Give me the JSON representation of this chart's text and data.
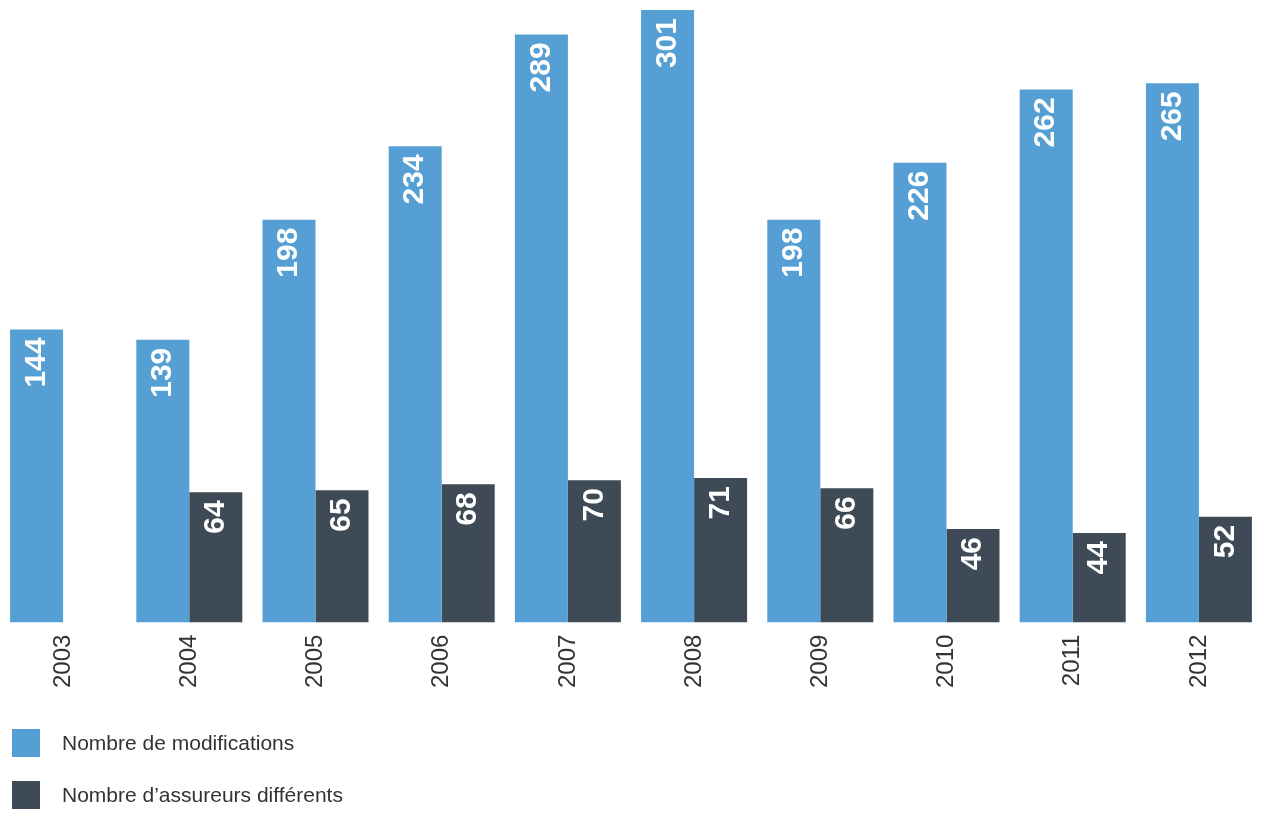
{
  "chart_data": {
    "type": "bar",
    "categories": [
      "2003",
      "2004",
      "2005",
      "2006",
      "2007",
      "2008",
      "2009",
      "2010",
      "2011",
      "2012"
    ],
    "series": [
      {
        "name": "Nombre de modifications",
        "color": "#559fd4",
        "values": [
          144,
          139,
          198,
          234,
          289,
          301,
          198,
          226,
          262,
          265
        ]
      },
      {
        "name": "Nombre d’assureurs différents",
        "color": "#3e4b56",
        "values": [
          null,
          64,
          65,
          68,
          70,
          71,
          66,
          46,
          44,
          52
        ]
      }
    ],
    "data_labels": true,
    "grid": false,
    "legend": "bottom left",
    "tick_labels": "x"
  }
}
